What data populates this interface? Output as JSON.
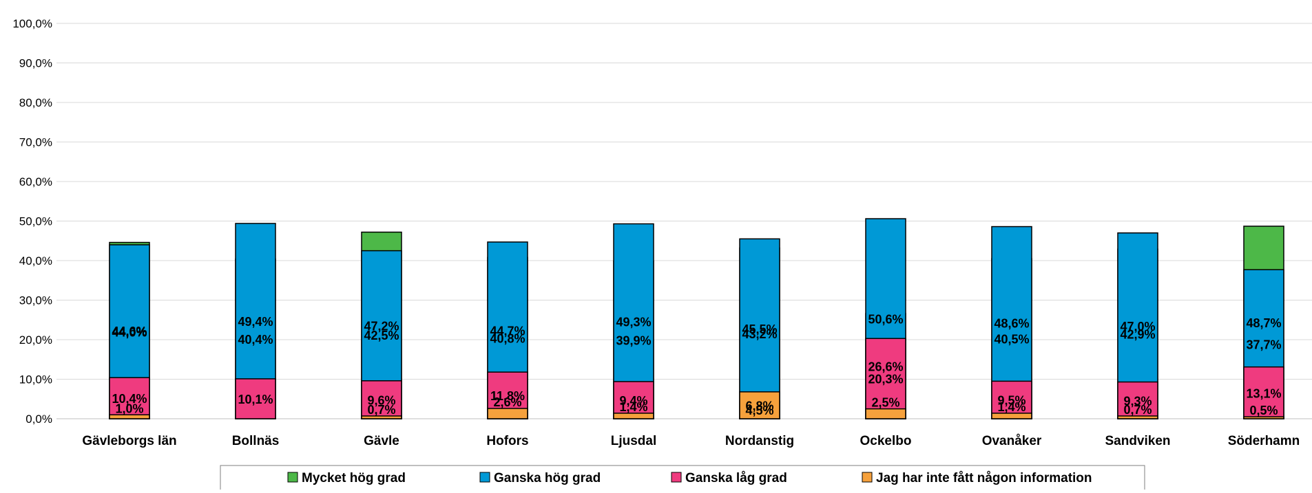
{
  "chart_data": {
    "type": "bar",
    "stacked": true,
    "categories": [
      "Gävleborgs län",
      "Bollnäs",
      "Gävle",
      "Hofors",
      "Ljusdal",
      "Nordanstig",
      "Ockelbo",
      "Ovanåker",
      "Sandviken",
      "Söderhamn"
    ],
    "series": [
      {
        "name": "Mycket hög grad",
        "color": "#4db848",
        "values": [
          44.6,
          40.4,
          47.2,
          40.8,
          39.9,
          43.2,
          26.6,
          40.5,
          42.9,
          48.7
        ],
        "labels": [
          "44,6%",
          "40,4%",
          "47,2%",
          "40,8%",
          "39,9%",
          "43,2%",
          "26,6%",
          "40,5%",
          "42,9%",
          "48,7%"
        ]
      },
      {
        "name": "Ganska hög grad",
        "color": "#0099d6",
        "values": [
          44.0,
          49.4,
          42.5,
          44.7,
          49.3,
          45.5,
          50.6,
          48.6,
          47.0,
          37.7
        ],
        "labels": [
          "44,0%",
          "49,4%",
          "42,5%",
          "44,7%",
          "49,3%",
          "45,5%",
          "50,6%",
          "48,6%",
          "47,0%",
          "37,7%"
        ]
      },
      {
        "name": "Ganska låg grad",
        "color": "#ef3b7f",
        "values": [
          10.4,
          10.1,
          9.6,
          11.8,
          9.4,
          4.5,
          20.3,
          9.5,
          9.3,
          13.1
        ],
        "labels": [
          "10,4%",
          "10,1%",
          "9,6%",
          "11,8%",
          "9,4%",
          "4,5%",
          "20,3%",
          "9,5%",
          "9,3%",
          "13,1%"
        ]
      },
      {
        "name": "Jag  har inte fått någon information",
        "color": "#f6a13c",
        "values": [
          1.0,
          0.0,
          0.7,
          2.6,
          1.4,
          6.8,
          2.5,
          1.4,
          0.7,
          0.5
        ],
        "labels": [
          "1,0%",
          "",
          "0,7%",
          "2,6%",
          "1,4%",
          "6,8%",
          "2,5%",
          "1,4%",
          "0,7%",
          "0,5%"
        ]
      }
    ],
    "yaxis": {
      "min": 0,
      "max": 100,
      "ticks": [
        0,
        10,
        20,
        30,
        40,
        50,
        60,
        70,
        80,
        90,
        100
      ],
      "tick_labels": [
        "0,0%",
        "10,0%",
        "20,0%",
        "30,0%",
        "40,0%",
        "50,0%",
        "60,0%",
        "70,0%",
        "80,0%",
        "90,0%",
        "100,0%"
      ]
    },
    "grid": true,
    "legend_position": "bottom",
    "title": "",
    "xlabel": "",
    "ylabel": ""
  }
}
